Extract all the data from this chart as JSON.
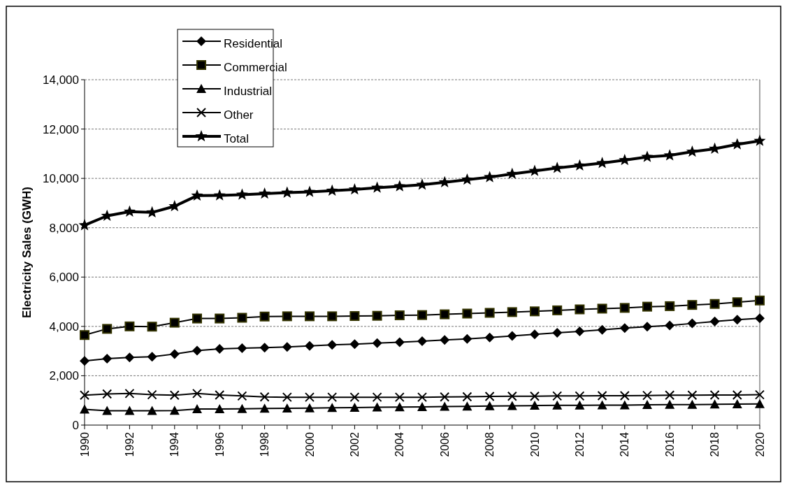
{
  "chart_data": {
    "type": "line",
    "ylabel": "Electricity Sales (GWH)",
    "x": [
      1990,
      1991,
      1992,
      1993,
      1994,
      1995,
      1996,
      1997,
      1998,
      1999,
      2000,
      2001,
      2002,
      2003,
      2004,
      2005,
      2006,
      2007,
      2008,
      2009,
      2010,
      2011,
      2012,
      2013,
      2014,
      2015,
      2016,
      2017,
      2018,
      2019,
      2020
    ],
    "xlim": [
      1990,
      2020
    ],
    "xticks": [
      1990,
      {
        "value": 1991,
        "label": null
      },
      1992,
      {
        "value": 1993,
        "label": null
      },
      1994,
      {
        "value": 1995,
        "label": null
      },
      1996,
      {
        "value": 1997,
        "label": null
      },
      1998,
      {
        "value": 1999,
        "label": null
      },
      2000,
      {
        "value": 2001,
        "label": null
      },
      2002,
      {
        "value": 2003,
        "label": null
      },
      2004,
      {
        "value": 2005,
        "label": null
      },
      2006,
      {
        "value": 2007,
        "label": null
      },
      2008,
      {
        "value": 2009,
        "label": null
      },
      2010,
      {
        "value": 2011,
        "label": null
      },
      2012,
      {
        "value": 2013,
        "label": null
      },
      2014,
      {
        "value": 2015,
        "label": null
      },
      2016,
      {
        "value": 2017,
        "label": null
      },
      2018,
      {
        "value": 2019,
        "label": null
      },
      2020
    ],
    "ylim": [
      0,
      14000
    ],
    "yticks": [
      {
        "value": 0,
        "label": "0"
      },
      {
        "value": 2000,
        "label": "2,000"
      },
      {
        "value": 4000,
        "label": "4,000"
      },
      {
        "value": 6000,
        "label": "6,000"
      },
      {
        "value": 8000,
        "label": "8,000"
      },
      {
        "value": 10000,
        "label": "10,000"
      },
      {
        "value": 12000,
        "label": "12,000"
      },
      {
        "value": 14000,
        "label": "14,000"
      }
    ],
    "grid": "y",
    "legend": "top left",
    "line_style": "solid",
    "series": [
      {
        "name": "Residential",
        "color": "#000000",
        "marker": "diamond",
        "values": [
          2600,
          2690,
          2740,
          2770,
          2880,
          3020,
          3090,
          3120,
          3140,
          3170,
          3210,
          3250,
          3280,
          3320,
          3360,
          3400,
          3450,
          3490,
          3550,
          3610,
          3680,
          3740,
          3800,
          3860,
          3930,
          3990,
          4040,
          4120,
          4200,
          4270,
          4330
        ]
      },
      {
        "name": "Commercial",
        "color": "#000000",
        "marker": "square",
        "values": [
          3650,
          3900,
          4000,
          3990,
          4150,
          4320,
          4320,
          4350,
          4400,
          4410,
          4410,
          4410,
          4420,
          4430,
          4450,
          4460,
          4490,
          4520,
          4550,
          4580,
          4610,
          4650,
          4690,
          4720,
          4750,
          4800,
          4820,
          4870,
          4910,
          4980,
          5050
        ]
      },
      {
        "name": "Industrial",
        "color": "#000000",
        "marker": "triangle",
        "values": [
          640,
          580,
          580,
          580,
          590,
          650,
          650,
          660,
          670,
          680,
          690,
          700,
          710,
          720,
          730,
          740,
          750,
          760,
          770,
          780,
          790,
          800,
          800,
          810,
          810,
          820,
          830,
          830,
          840,
          850,
          860
        ]
      },
      {
        "name": "Other",
        "color": "#000000",
        "marker": "cross",
        "values": [
          1210,
          1260,
          1280,
          1230,
          1210,
          1280,
          1220,
          1180,
          1140,
          1130,
          1130,
          1130,
          1130,
          1130,
          1130,
          1130,
          1140,
          1150,
          1160,
          1170,
          1170,
          1180,
          1180,
          1190,
          1190,
          1200,
          1210,
          1210,
          1220,
          1220,
          1230
        ]
      },
      {
        "name": "Total",
        "color": "#000000",
        "marker": "star",
        "values": [
          8100,
          8480,
          8650,
          8620,
          8870,
          9300,
          9310,
          9340,
          9380,
          9420,
          9450,
          9500,
          9550,
          9620,
          9680,
          9740,
          9840,
          9950,
          10050,
          10180,
          10300,
          10420,
          10520,
          10620,
          10740,
          10870,
          10930,
          11080,
          11200,
          11380,
          11520
        ]
      }
    ]
  }
}
